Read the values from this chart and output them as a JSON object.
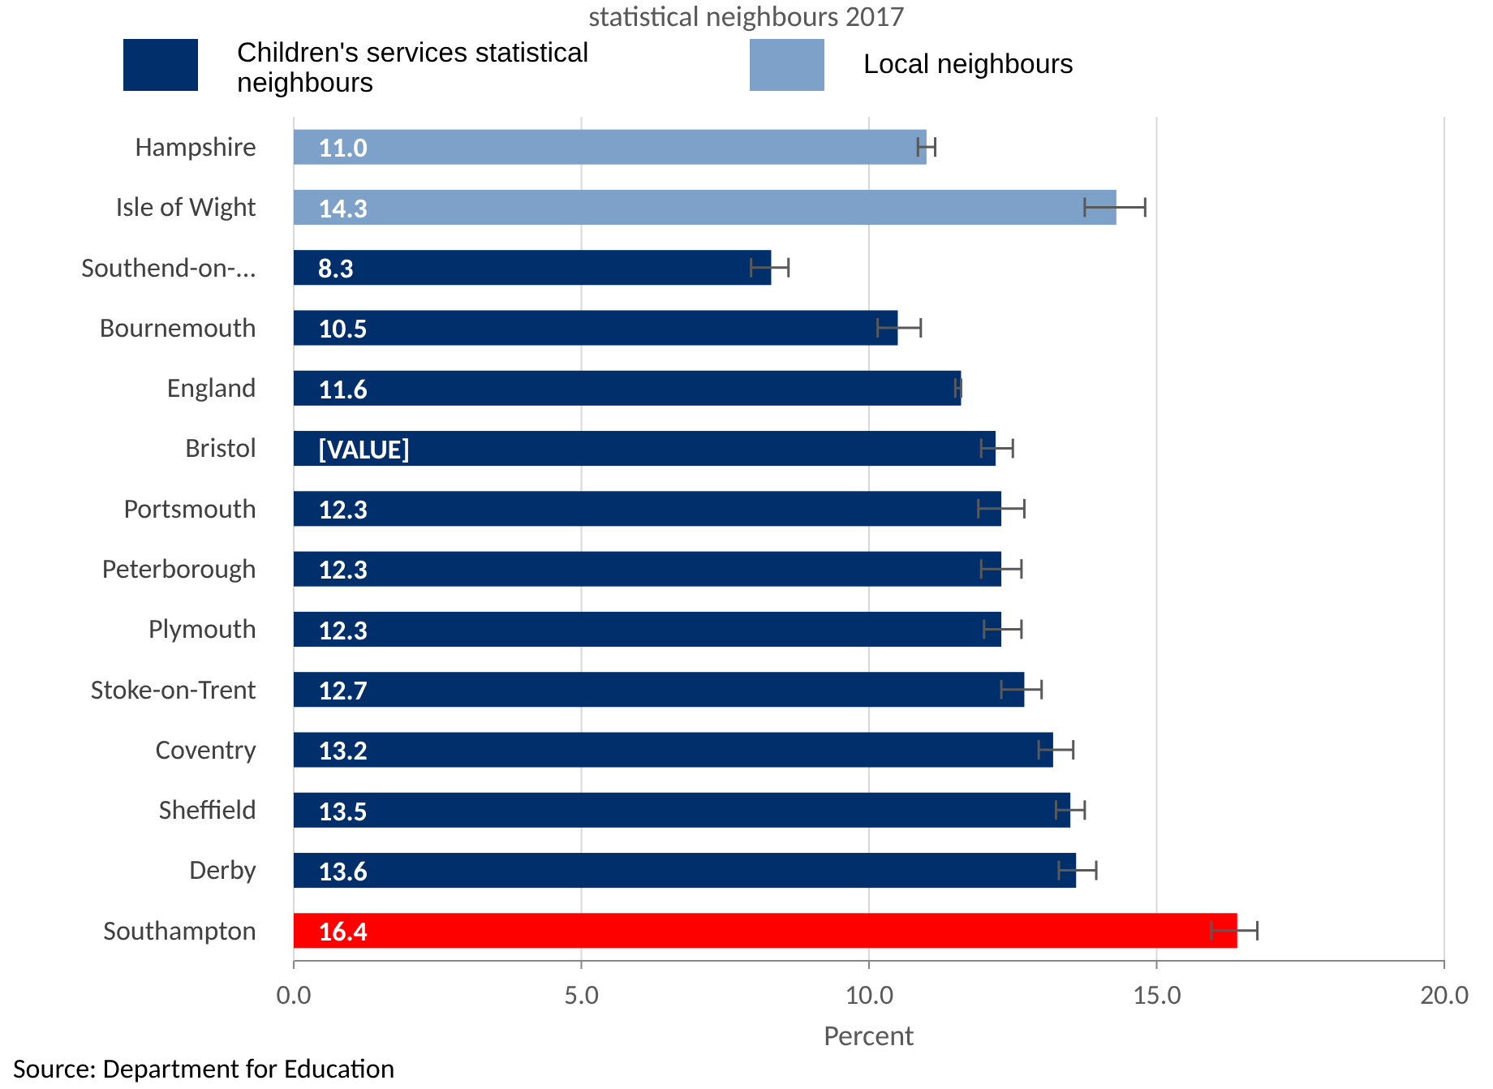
{
  "chart_data": {
    "type": "bar",
    "orientation": "horizontal",
    "title": "statistical neighbours 2017",
    "categories": [
      "Hampshire",
      "Isle of Wight",
      "Southend-on-...",
      "Bournemouth",
      "England",
      "Bristol",
      "Portsmouth",
      "Peterborough",
      "Plymouth",
      "Stoke-on-Trent",
      "Coventry",
      "Sheffield",
      "Derby",
      "Southampton"
    ],
    "series": [
      {
        "name": "Children's services statistical neighbours",
        "color": "#002f6c",
        "values": [
          null,
          null,
          8.3,
          10.5,
          11.6,
          12.2,
          12.3,
          12.3,
          12.3,
          12.7,
          13.2,
          13.5,
          13.6,
          null
        ],
        "errors": [
          null,
          null,
          [
            7.95,
            8.6
          ],
          [
            10.15,
            10.9
          ],
          [
            11.5,
            11.6
          ],
          [
            11.95,
            12.5
          ],
          [
            11.9,
            12.7
          ],
          [
            11.95,
            12.65
          ],
          [
            12.0,
            12.65
          ],
          [
            12.3,
            13.0
          ],
          [
            12.95,
            13.55
          ],
          [
            13.25,
            13.75
          ],
          [
            13.3,
            13.95
          ],
          null
        ],
        "value_labels": [
          null,
          null,
          "8.3",
          "10.5",
          "11.6",
          "[VALUE]",
          "12.3",
          "12.3",
          "12.3",
          "12.7",
          "13.2",
          "13.5",
          "13.6",
          null
        ]
      },
      {
        "name": "Local neighbours",
        "color": "#7da1c8",
        "values": [
          11.0,
          14.3,
          null,
          null,
          null,
          null,
          null,
          null,
          null,
          null,
          null,
          null,
          null,
          null
        ],
        "errors": [
          [
            10.85,
            11.15
          ],
          [
            13.75,
            14.8
          ],
          null,
          null,
          null,
          null,
          null,
          null,
          null,
          null,
          null,
          null,
          null,
          null
        ],
        "value_labels": [
          "11.0",
          "14.3",
          null,
          null,
          null,
          null,
          null,
          null,
          null,
          null,
          null,
          null,
          null,
          null
        ]
      },
      {
        "color": "#ff0000",
        "values": [
          null,
          null,
          null,
          null,
          null,
          null,
          null,
          null,
          null,
          null,
          null,
          null,
          null,
          16.4
        ],
        "errors": [
          null,
          null,
          null,
          null,
          null,
          null,
          null,
          null,
          null,
          null,
          null,
          null,
          null,
          [
            15.95,
            16.75
          ]
        ],
        "value_labels": [
          null,
          null,
          null,
          null,
          null,
          null,
          null,
          null,
          null,
          null,
          null,
          null,
          null,
          "16.4"
        ]
      }
    ],
    "xlim": [
      0,
      20
    ],
    "xticks": [
      {
        "value": 0,
        "label": "0.0"
      },
      {
        "value": 5,
        "label": "5.0"
      },
      {
        "value": 10,
        "label": "10.0"
      },
      {
        "value": 15,
        "label": "15.0"
      },
      {
        "value": 20,
        "label": "20.0"
      }
    ],
    "xlabel": "Percent",
    "grid": "x",
    "legend": "top",
    "annotations": [
      "Source: Department for Education"
    ]
  }
}
